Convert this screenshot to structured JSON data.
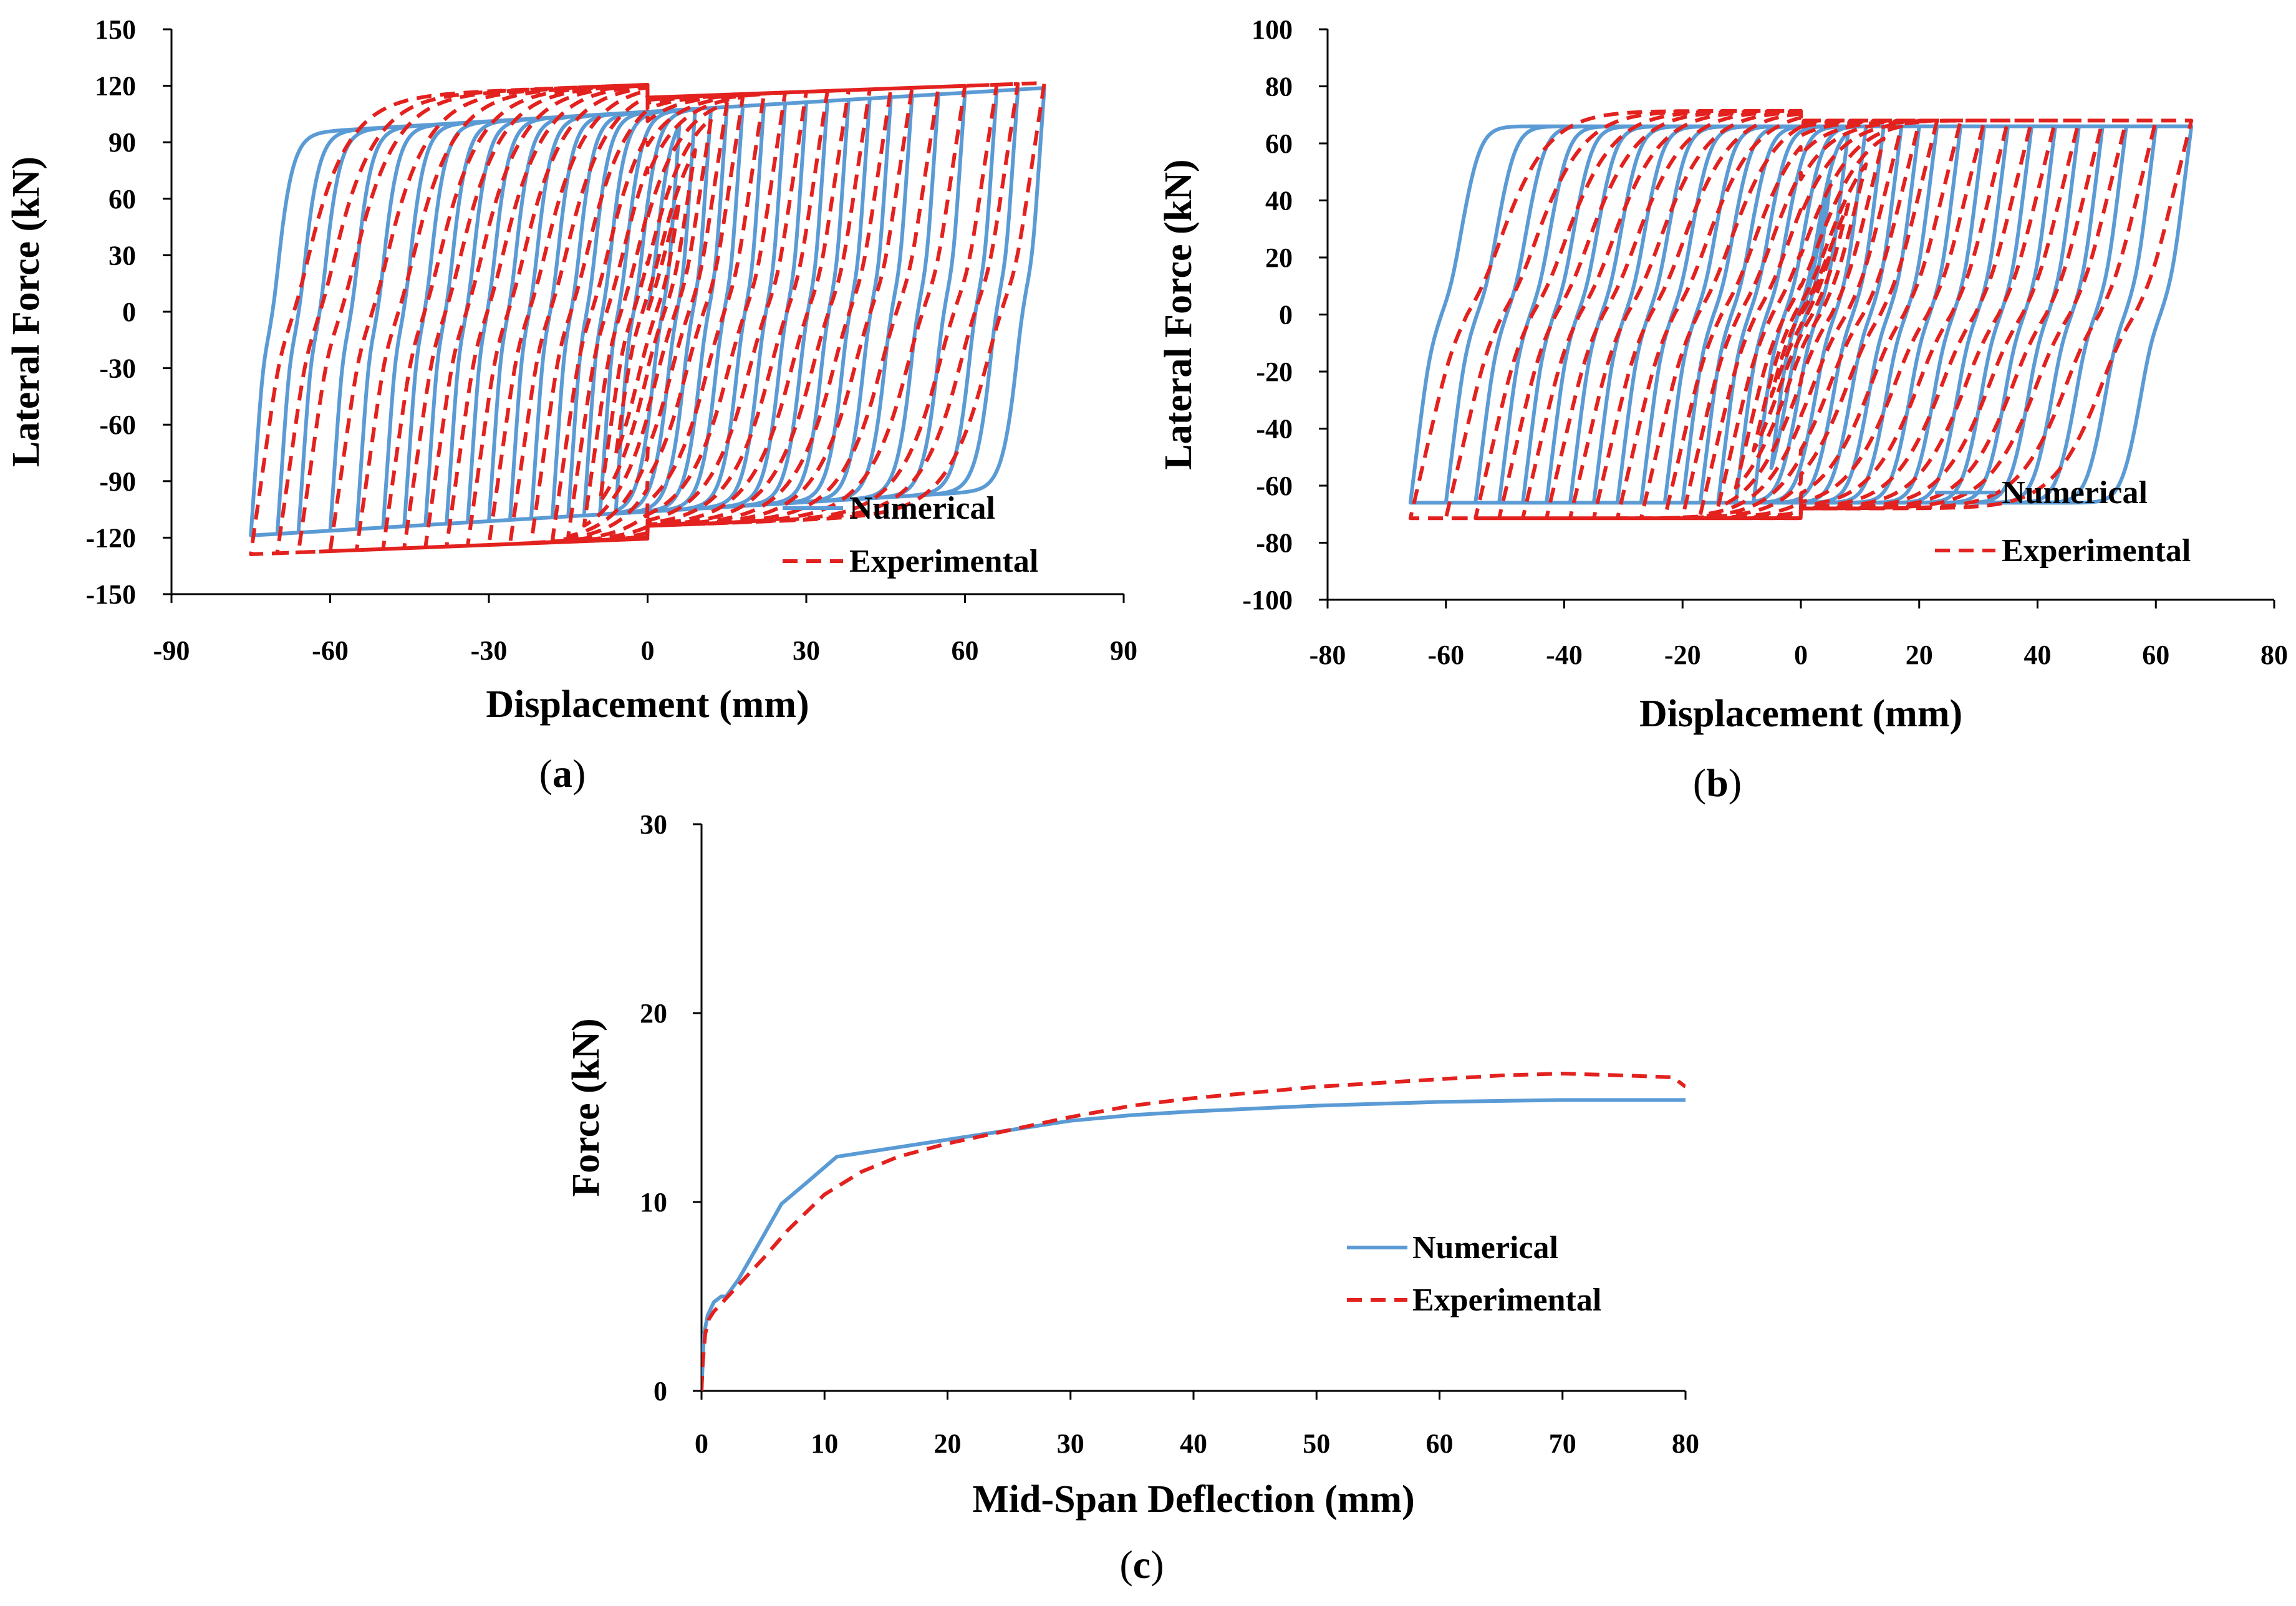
{
  "colors": {
    "numerical": "#5b9bd5",
    "experimental": "#e3211e"
  },
  "chart_data": [
    {
      "panel": "(a)",
      "type": "line",
      "xlabel": "Displacement (mm)",
      "ylabel": "Lateral Force (kN)",
      "xlim": [
        -90,
        90
      ],
      "ylim": [
        -150,
        150
      ],
      "xticks": [
        -90,
        -60,
        -30,
        0,
        30,
        60,
        90
      ],
      "yticks": [
        -150,
        -120,
        -90,
        -60,
        -30,
        0,
        30,
        60,
        90,
        120,
        150
      ],
      "legend": [
        "Numerical",
        "Experimental"
      ],
      "legend_position": "bottom-right",
      "hysteresis": {
        "amplitudes": [
          6,
          9,
          12,
          15,
          18,
          22,
          26,
          30,
          34,
          38,
          42,
          46,
          50,
          55,
          60,
          66,
          70,
          75
        ],
        "series": [
          {
            "name": "Numerical",
            "Fy": 118,
            "k0": 32,
            "r": 0.1,
            "pin": 0.62,
            "z0": 0.03,
            "n": 2.2,
            "skew": 1.0
          },
          {
            "name": "Experimental",
            "Fy": 121,
            "k0": 14,
            "r": 0.06,
            "pin": 0.5,
            "z0": 0.04,
            "n": 1.6,
            "skew": 1.06
          }
        ]
      }
    },
    {
      "panel": "(b)",
      "type": "line",
      "xlabel": "Displacement (mm)",
      "ylabel": "Lateral Force (kN)",
      "xlim": [
        -80,
        80
      ],
      "ylim": [
        -100,
        100
      ],
      "xticks": [
        -80,
        -60,
        -40,
        -20,
        0,
        20,
        40,
        60,
        80
      ],
      "yticks": [
        -100,
        -80,
        -60,
        -40,
        -20,
        0,
        20,
        40,
        60,
        80,
        100
      ],
      "legend": [
        "Numerical",
        "Experimental"
      ],
      "legend_position": "right",
      "hysteresis": {
        "amplitudes": [
          5,
          8,
          11,
          14,
          17,
          20,
          23,
          27,
          31,
          35,
          39,
          43,
          47,
          51,
          55,
          60,
          66
        ],
        "series": [
          {
            "name": "Numerical",
            "Fy": 66,
            "k0": 12,
            "r": 0.0,
            "pin": 0.72,
            "z0": 0.03,
            "n": 4,
            "skew": 1.0
          },
          {
            "name": "Experimental",
            "Fy": 68,
            "k0": 6,
            "r": 0.0,
            "pin": 0.6,
            "z0": 0.05,
            "n": 2.5,
            "skew": 1.05
          }
        ]
      }
    },
    {
      "panel": "(c)",
      "type": "line",
      "xlabel": "Mid-Span Deflection (mm)",
      "ylabel": "Force (kN)",
      "xlim": [
        0,
        80
      ],
      "ylim": [
        0,
        30
      ],
      "xticks": [
        0,
        10,
        20,
        30,
        40,
        50,
        60,
        70,
        80
      ],
      "yticks": [
        0,
        10,
        20,
        30
      ],
      "legend": [
        "Numerical",
        "Experimental"
      ],
      "legend_position": "right",
      "series": [
        {
          "name": "Numerical",
          "x": [
            0,
            0.2,
            0.5,
            1,
            1.6,
            2,
            3,
            4.5,
            6.5,
            8.5,
            11,
            15,
            20,
            25,
            30,
            35,
            40,
            50,
            60,
            70,
            80
          ],
          "y": [
            0,
            3,
            4,
            4.7,
            5,
            5,
            5.9,
            7.6,
            9.9,
            11,
            12.4,
            12.8,
            13.3,
            13.8,
            14.3,
            14.6,
            14.8,
            15.1,
            15.3,
            15.4,
            15.4
          ]
        },
        {
          "name": "Experimental",
          "x": [
            0,
            0.1,
            0.3,
            0.6,
            1,
            2,
            3,
            5,
            7,
            10,
            13,
            16,
            20,
            25,
            30,
            35,
            40,
            45,
            50,
            55,
            60,
            65,
            70,
            75,
            79,
            80
          ],
          "y": [
            0,
            1.5,
            3,
            3.8,
            4.2,
            4.9,
            5.6,
            7,
            8.5,
            10.4,
            11.6,
            12.4,
            13.1,
            13.8,
            14.5,
            15.1,
            15.5,
            15.8,
            16.1,
            16.3,
            16.5,
            16.7,
            16.8,
            16.7,
            16.6,
            16.1
          ]
        }
      ]
    }
  ]
}
